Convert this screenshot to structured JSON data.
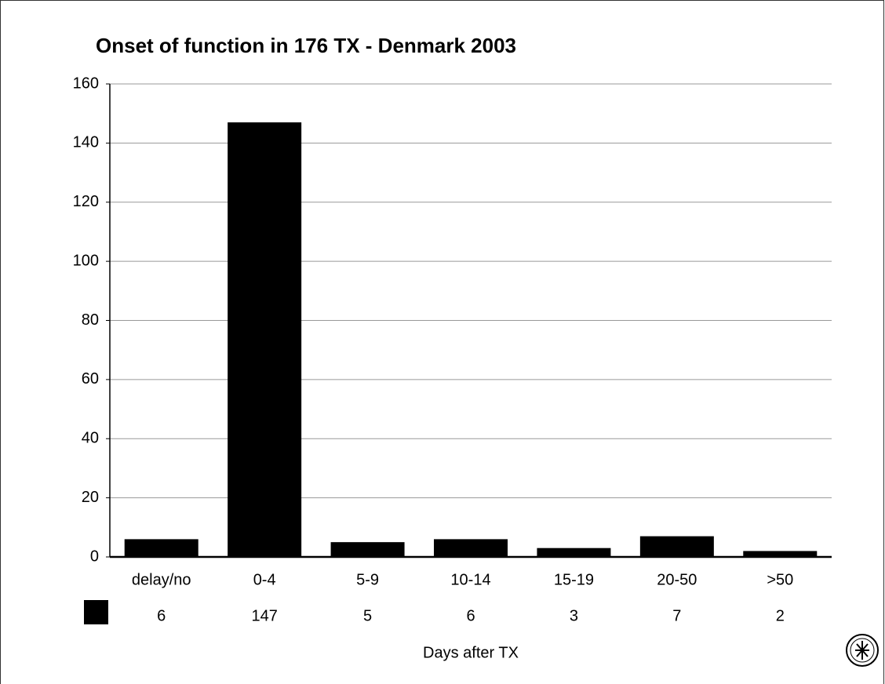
{
  "chart_data": {
    "type": "bar",
    "title": "Onset of function in 176 TX - Denmark 2003",
    "categories": [
      "delay/no",
      "0-4",
      "5-9",
      "10-14",
      "15-19",
      "20-50",
      ">50"
    ],
    "values": [
      6,
      147,
      5,
      6,
      3,
      7,
      2
    ],
    "color": "#000000",
    "x_label": "Days after TX",
    "ylim": [
      0,
      160
    ],
    "yticks": [
      0,
      20,
      40,
      60,
      80,
      100,
      120,
      140,
      160
    ],
    "grid": true
  }
}
